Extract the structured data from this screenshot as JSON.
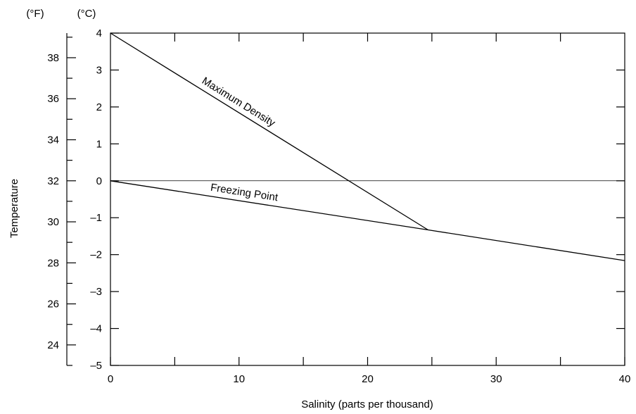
{
  "chart_data": {
    "type": "line",
    "xlabel": "Salinity (parts per thousand)",
    "ylabel": "Temperature",
    "unit_celsius": "(°C)",
    "unit_fahrenheit": "(°F)",
    "xlim": [
      0,
      40
    ],
    "ylim_celsius": [
      -5,
      4
    ],
    "ylim_fahrenheit": [
      23,
      39.2
    ],
    "x_ticks_major": [
      0,
      10,
      20,
      30,
      40
    ],
    "x_ticks_minor": [
      5,
      15,
      25,
      35
    ],
    "x_tick_labels": [
      "0",
      "10",
      "20",
      "30",
      "40"
    ],
    "y_ticks_celsius": [
      4,
      3,
      2,
      1,
      0,
      -1,
      -2,
      -3,
      -4,
      -5
    ],
    "y_tick_labels_celsius": [
      "4",
      "3",
      "2",
      "1",
      "0",
      "–1",
      "–2",
      "–3",
      "–4",
      "–5"
    ],
    "y_ticks_fahrenheit_major": [
      38,
      36,
      34,
      32,
      30,
      28,
      26,
      24
    ],
    "y_ticks_fahrenheit_minor": [
      39,
      37,
      35,
      33,
      31,
      29,
      27,
      25,
      23
    ],
    "y_tick_labels_fahrenheit": [
      "38",
      "36",
      "34",
      "32",
      "30",
      "28",
      "26",
      "24"
    ],
    "reference_line_y": 0,
    "grid": false,
    "series": [
      {
        "name": "Maximum Density",
        "x": [
          0,
          24.7
        ],
        "y": [
          4,
          -1.33
        ]
      },
      {
        "name": "Freezing Point",
        "x": [
          0,
          24.7,
          40
        ],
        "y": [
          0,
          -1.33,
          -2.16
        ]
      }
    ]
  }
}
